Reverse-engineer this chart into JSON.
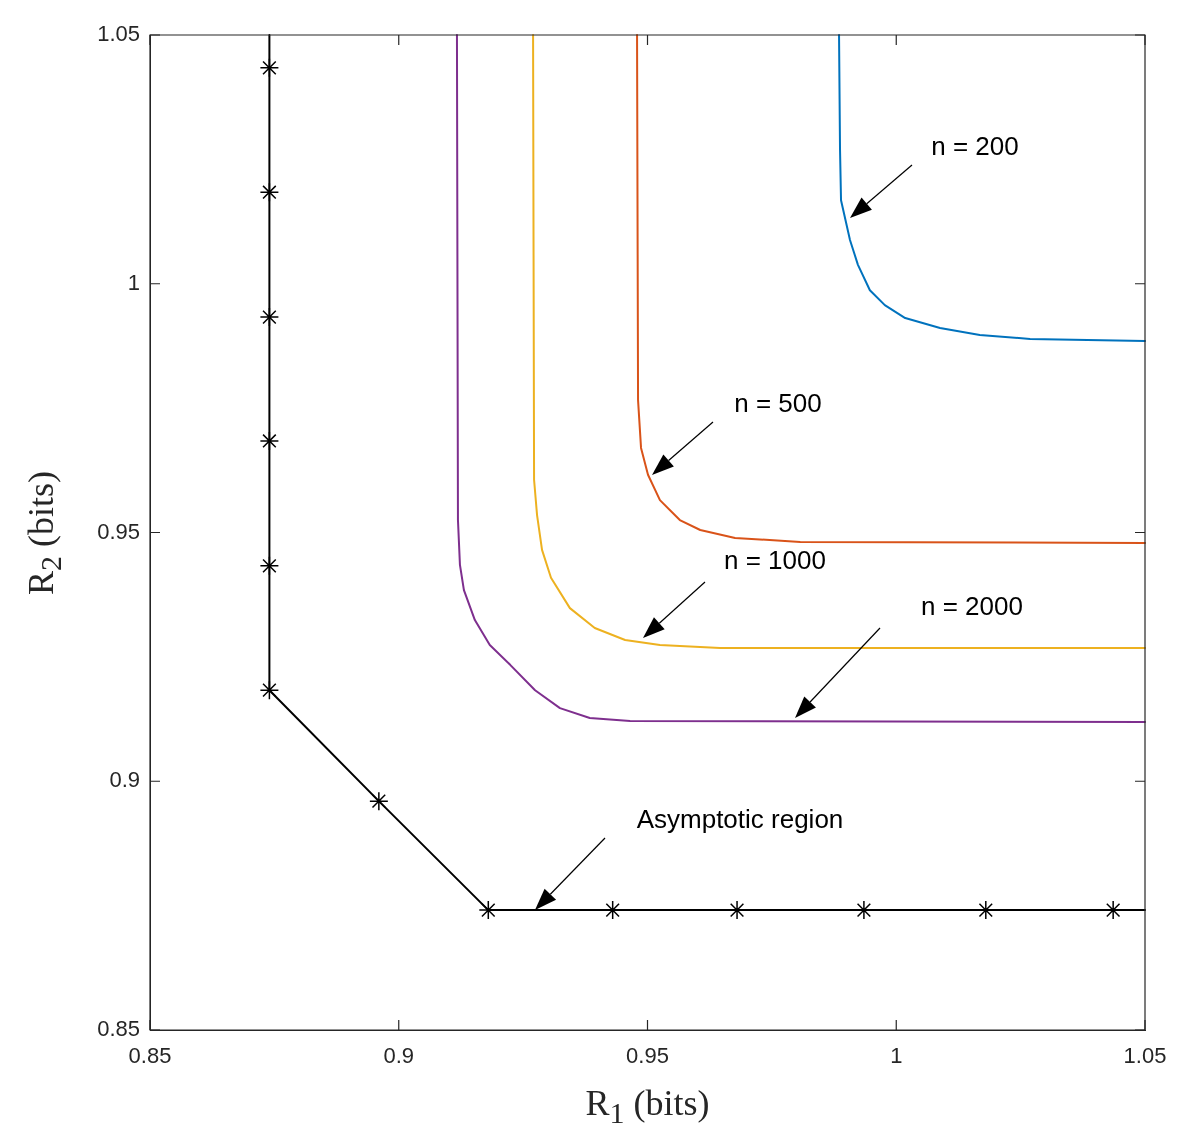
{
  "chart_data": {
    "type": "line",
    "xlabel": "R$_{1}$ (bits)",
    "ylabel": "R$_{2}$ (bits)",
    "xlim": [
      0.85,
      1.05
    ],
    "ylim": [
      0.85,
      1.05
    ],
    "xticks": [
      0.85,
      0.9,
      0.95,
      1,
      1.05
    ],
    "yticks": [
      0.85,
      0.9,
      0.95,
      1,
      1.05
    ],
    "grid": false,
    "legend": false,
    "series": [
      {
        "type": "line",
        "color": "#0072bd",
        "marker": "none",
        "x": [
          0.9885,
          0.9887,
          0.9889,
          0.9907,
          0.9923,
          0.9947,
          0.9977,
          1.0018,
          1.0088,
          1.0168,
          1.0269,
          1.05
        ],
        "values": [
          1.05,
          1.0269,
          1.0168,
          1.0088,
          1.0038,
          0.9987,
          0.9957,
          0.9931,
          0.9911,
          0.9897,
          0.9889,
          0.9885
        ]
      },
      {
        "type": "line",
        "color": "#d95319",
        "marker": "none",
        "x": [
          0.9479,
          0.9481,
          0.9487,
          0.9501,
          0.9525,
          0.9565,
          0.9606,
          0.9676,
          0.9807,
          1.05
        ],
        "values": [
          1.05,
          0.9766,
          0.967,
          0.9616,
          0.9565,
          0.9525,
          0.9505,
          0.9489,
          0.9481,
          0.9479
        ]
      },
      {
        "type": "line",
        "color": "#edb120",
        "marker": "none",
        "x": [
          0.927,
          0.9272,
          0.9278,
          0.9288,
          0.9306,
          0.9344,
          0.9394,
          0.9455,
          0.9525,
          0.9646,
          1.05
        ],
        "values": [
          1.05,
          0.9606,
          0.9535,
          0.9465,
          0.9409,
          0.9348,
          0.9308,
          0.9284,
          0.9274,
          0.9268,
          0.9268
        ]
      },
      {
        "type": "line",
        "color": "#7e2f8e",
        "marker": "none",
        "x": [
          0.9117,
          0.9119,
          0.9123,
          0.9131,
          0.9153,
          0.9183,
          0.9224,
          0.9274,
          0.9324,
          0.9384,
          0.9465,
          1.05
        ],
        "values": [
          1.05,
          0.9525,
          0.9435,
          0.9384,
          0.9324,
          0.9274,
          0.9234,
          0.9183,
          0.9147,
          0.9127,
          0.9121,
          0.9119
        ]
      },
      {
        "type": "line",
        "color": "#000000",
        "marker": "none",
        "x": [
          0.874,
          0.874,
          0.896,
          0.918,
          1.05
        ],
        "values": [
          1.05,
          0.9183,
          0.896,
          0.8741,
          0.8741
        ]
      },
      {
        "type": "scatter",
        "color": "#000000",
        "marker": "cross",
        "x": [
          0.874,
          0.874,
          0.874,
          0.874,
          0.874,
          0.874,
          0.896,
          0.918,
          0.943,
          0.968,
          0.9935,
          1.018,
          1.0436
        ],
        "values": [
          1.0434,
          1.0184,
          0.9933,
          0.9684,
          0.9433,
          0.9183,
          0.896,
          0.8741,
          0.8741,
          0.8741,
          0.8741,
          0.8741,
          0.8741
        ]
      }
    ],
    "annotations": [
      "n = 200",
      "n = 500",
      "n = 1000",
      "n = 2000",
      "Asymptotic region"
    ]
  }
}
